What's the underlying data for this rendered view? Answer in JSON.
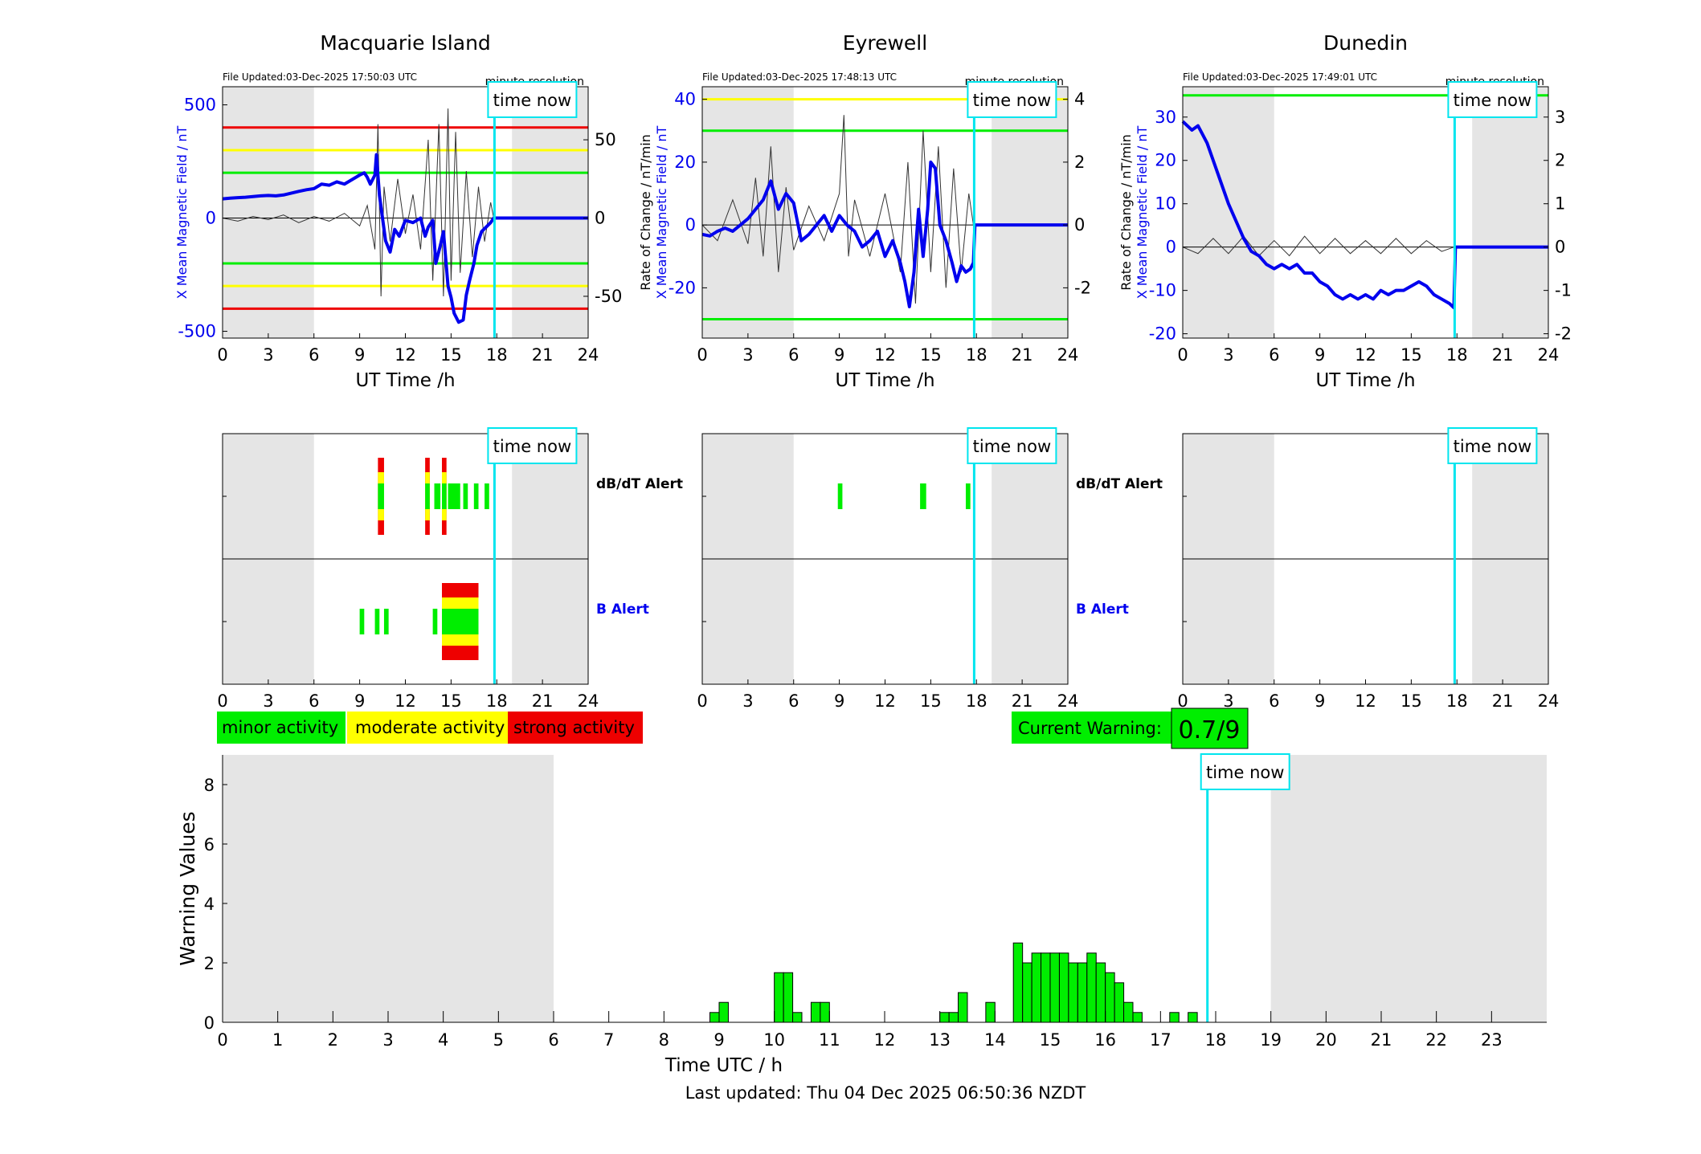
{
  "colors": {
    "blue": "#0000ee",
    "green": "#00ee00",
    "yellow": "#ffff00",
    "red": "#ee0000",
    "cyan": "#00e5ee",
    "grey_shade": "#e5e5e5",
    "trace": "#333333"
  },
  "time_now_label": "time now",
  "minute_resolution_label": "minute resolution",
  "stations": [
    {
      "name": "Macquarie Island",
      "file_updated": "File Updated:03-Dec-2025 17:50:03 UTC",
      "left_label": "X Mean Magnetic Field / nT",
      "right_label": "",
      "left_ylim": [
        -530,
        580
      ],
      "left_ticks": [
        -500,
        0,
        500
      ],
      "right_ylim": [
        -76.7,
        83.9
      ],
      "right_ticks": [
        -50,
        0,
        50
      ],
      "thresholds": [
        {
          "value": 400,
          "color": "red"
        },
        {
          "value": 300,
          "color": "yellow"
        },
        {
          "value": 200,
          "color": "green"
        },
        {
          "value": -200,
          "color": "green"
        },
        {
          "value": -300,
          "color": "yellow"
        },
        {
          "value": -400,
          "color": "red"
        }
      ],
      "mean_field": [
        [
          0,
          85
        ],
        [
          0.5,
          88
        ],
        [
          1,
          90
        ],
        [
          1.5,
          92
        ],
        [
          2,
          95
        ],
        [
          2.5,
          98
        ],
        [
          3,
          100
        ],
        [
          3.5,
          98
        ],
        [
          4,
          102
        ],
        [
          4.5,
          110
        ],
        [
          5,
          118
        ],
        [
          5.5,
          125
        ],
        [
          6,
          130
        ],
        [
          6.5,
          150
        ],
        [
          7,
          145
        ],
        [
          7.5,
          160
        ],
        [
          8,
          150
        ],
        [
          8.5,
          170
        ],
        [
          9,
          190
        ],
        [
          9.3,
          200
        ],
        [
          9.5,
          180
        ],
        [
          9.7,
          150
        ],
        [
          10,
          190
        ],
        [
          10.1,
          280
        ],
        [
          10.3,
          100
        ],
        [
          10.5,
          0
        ],
        [
          10.7,
          -100
        ],
        [
          11,
          -150
        ],
        [
          11.3,
          -50
        ],
        [
          11.6,
          -80
        ],
        [
          12,
          -10
        ],
        [
          12.5,
          -20
        ],
        [
          13,
          0
        ],
        [
          13.3,
          -80
        ],
        [
          13.5,
          -40
        ],
        [
          13.8,
          -10
        ],
        [
          14,
          -200
        ],
        [
          14.3,
          -120
        ],
        [
          14.5,
          -60
        ],
        [
          14.8,
          -300
        ],
        [
          15,
          -350
        ],
        [
          15.2,
          -420
        ],
        [
          15.5,
          -460
        ],
        [
          15.8,
          -450
        ],
        [
          16,
          -340
        ],
        [
          16.2,
          -280
        ],
        [
          16.5,
          -200
        ],
        [
          16.7,
          -120
        ],
        [
          17,
          -60
        ],
        [
          17.3,
          -40
        ],
        [
          17.6,
          -20
        ],
        [
          17.8,
          0
        ],
        [
          24,
          0
        ]
      ],
      "roc_trace": [
        [
          0,
          0
        ],
        [
          1,
          -2
        ],
        [
          2,
          1
        ],
        [
          3,
          -1
        ],
        [
          4,
          2
        ],
        [
          5,
          -3
        ],
        [
          6,
          1
        ],
        [
          7,
          -2
        ],
        [
          8,
          3
        ],
        [
          9,
          -5
        ],
        [
          9.5,
          8
        ],
        [
          10,
          -20
        ],
        [
          10.2,
          60
        ],
        [
          10.4,
          -50
        ],
        [
          10.6,
          20
        ],
        [
          11,
          -15
        ],
        [
          11.5,
          25
        ],
        [
          12,
          -10
        ],
        [
          12.5,
          15
        ],
        [
          13,
          -20
        ],
        [
          13.5,
          50
        ],
        [
          13.8,
          -40
        ],
        [
          14.2,
          60
        ],
        [
          14.5,
          -50
        ],
        [
          14.8,
          70
        ],
        [
          15,
          -40
        ],
        [
          15.3,
          55
        ],
        [
          15.6,
          -35
        ],
        [
          16,
          30
        ],
        [
          16.4,
          -25
        ],
        [
          16.8,
          20
        ],
        [
          17.2,
          -15
        ],
        [
          17.6,
          10
        ],
        [
          17.8,
          0
        ]
      ],
      "alert_db": [
        {
          "t": 10.2,
          "w": 0.4,
          "level": 3
        },
        {
          "t": 13.3,
          "w": 0.3,
          "level": 3
        },
        {
          "t": 13.9,
          "w": 0.4,
          "level": 1
        },
        {
          "t": 14.4,
          "w": 0.3,
          "level": 3
        },
        {
          "t": 14.8,
          "w": 0.8,
          "level": 1
        },
        {
          "t": 15.8,
          "w": 0.3,
          "level": 1
        },
        {
          "t": 16.5,
          "w": 0.3,
          "level": 1
        },
        {
          "t": 17.2,
          "w": 0.3,
          "level": 1
        }
      ],
      "alert_b": [
        {
          "t": 9,
          "w": 0.3,
          "level": 1
        },
        {
          "t": 10,
          "w": 0.3,
          "level": 1
        },
        {
          "t": 10.6,
          "w": 0.3,
          "level": 1
        },
        {
          "t": 13.8,
          "w": 0.3,
          "level": 1
        },
        {
          "t": 14.4,
          "w": 2.4,
          "level": 3
        }
      ]
    },
    {
      "name": "Eyrewell",
      "file_updated": "File Updated:03-Dec-2025 17:48:13 UTC",
      "left_label": "X Mean Magnetic Field / nT",
      "right_label": "Rate of Change / nT/min",
      "left_ylim": [
        -36,
        44
      ],
      "left_ticks": [
        -20,
        0,
        20,
        40
      ],
      "right_ylim": [
        -3.6,
        4.4
      ],
      "right_ticks": [
        -2,
        0,
        2,
        4
      ],
      "thresholds": [
        {
          "value": 40,
          "color": "yellow"
        },
        {
          "value": 30,
          "color": "green"
        },
        {
          "value": -30,
          "color": "green"
        }
      ],
      "mean_field": [
        [
          0,
          -3
        ],
        [
          0.5,
          -3.5
        ],
        [
          1,
          -2
        ],
        [
          1.5,
          -1
        ],
        [
          2,
          -2
        ],
        [
          2.5,
          0
        ],
        [
          3,
          2
        ],
        [
          3.5,
          5
        ],
        [
          4,
          8
        ],
        [
          4.5,
          14
        ],
        [
          5,
          5
        ],
        [
          5.5,
          10
        ],
        [
          6,
          7
        ],
        [
          6.5,
          -5
        ],
        [
          7,
          -3
        ],
        [
          7.5,
          0
        ],
        [
          8,
          3
        ],
        [
          8.5,
          -2
        ],
        [
          9,
          3
        ],
        [
          9.5,
          0
        ],
        [
          10,
          -2
        ],
        [
          10.5,
          -7
        ],
        [
          11,
          -5
        ],
        [
          11.5,
          -2
        ],
        [
          12,
          -10
        ],
        [
          12.5,
          -5
        ],
        [
          13,
          -12
        ],
        [
          13.3,
          -18
        ],
        [
          13.6,
          -26
        ],
        [
          13.9,
          -15
        ],
        [
          14.2,
          5
        ],
        [
          14.5,
          -10
        ],
        [
          14.8,
          5
        ],
        [
          15,
          20
        ],
        [
          15.3,
          18
        ],
        [
          15.6,
          0
        ],
        [
          16,
          -5
        ],
        [
          16.4,
          -12
        ],
        [
          16.7,
          -18
        ],
        [
          17,
          -13
        ],
        [
          17.3,
          -15
        ],
        [
          17.6,
          -14
        ],
        [
          17.8,
          -12
        ],
        [
          17.9,
          0
        ],
        [
          24,
          0
        ]
      ],
      "roc_trace": [
        [
          0,
          0
        ],
        [
          1,
          -0.5
        ],
        [
          2,
          0.8
        ],
        [
          3,
          -0.6
        ],
        [
          3.5,
          1.5
        ],
        [
          4,
          -1
        ],
        [
          4.5,
          2.5
        ],
        [
          5,
          -1.5
        ],
        [
          5.5,
          1.2
        ],
        [
          6,
          -0.8
        ],
        [
          7,
          0.6
        ],
        [
          8,
          -0.5
        ],
        [
          9,
          1
        ],
        [
          9.3,
          3.5
        ],
        [
          9.6,
          -1
        ],
        [
          10,
          0.8
        ],
        [
          11,
          -1
        ],
        [
          12,
          1
        ],
        [
          13,
          -1.5
        ],
        [
          13.5,
          2
        ],
        [
          14,
          -2.5
        ],
        [
          14.5,
          3
        ],
        [
          15,
          -1.5
        ],
        [
          15.5,
          2.5
        ],
        [
          16,
          -2
        ],
        [
          16.5,
          1.8
        ],
        [
          17,
          -1.5
        ],
        [
          17.5,
          1
        ],
        [
          17.8,
          0
        ]
      ],
      "alert_db": [
        {
          "t": 8.9,
          "w": 0.3,
          "level": 1
        },
        {
          "t": 14.3,
          "w": 0.4,
          "level": 1
        },
        {
          "t": 17.3,
          "w": 0.3,
          "level": 1
        }
      ],
      "alert_b": []
    },
    {
      "name": "Dunedin",
      "file_updated": "File Updated:03-Dec-2025 17:49:01 UTC",
      "left_label": "X Mean Magnetic Field / nT",
      "right_label": "Rate of Change / nT/min",
      "left_ylim": [
        -21,
        37
      ],
      "left_ticks": [
        -20,
        -10,
        0,
        10,
        20,
        30
      ],
      "right_ylim": [
        -2.1,
        3.7
      ],
      "right_ticks": [
        -2,
        -1,
        0,
        1,
        2,
        3
      ],
      "thresholds": [
        {
          "value": 35,
          "color": "green"
        }
      ],
      "mean_field": [
        [
          0,
          29
        ],
        [
          0.3,
          28
        ],
        [
          0.6,
          27
        ],
        [
          1,
          28
        ],
        [
          1.3,
          26
        ],
        [
          1.6,
          24
        ],
        [
          2,
          20
        ],
        [
          2.5,
          15
        ],
        [
          3,
          10
        ],
        [
          3.5,
          6
        ],
        [
          4,
          2
        ],
        [
          4.5,
          -1
        ],
        [
          5,
          -2
        ],
        [
          5.5,
          -4
        ],
        [
          6,
          -5
        ],
        [
          6.5,
          -4
        ],
        [
          7,
          -5
        ],
        [
          7.5,
          -4
        ],
        [
          8,
          -6
        ],
        [
          8.5,
          -6
        ],
        [
          9,
          -8
        ],
        [
          9.5,
          -9
        ],
        [
          10,
          -11
        ],
        [
          10.5,
          -12
        ],
        [
          11,
          -11
        ],
        [
          11.5,
          -12
        ],
        [
          12,
          -11
        ],
        [
          12.5,
          -12
        ],
        [
          13,
          -10
        ],
        [
          13.5,
          -11
        ],
        [
          14,
          -10
        ],
        [
          14.5,
          -10
        ],
        [
          15,
          -9
        ],
        [
          15.5,
          -8
        ],
        [
          16,
          -9
        ],
        [
          16.5,
          -11
        ],
        [
          17,
          -12
        ],
        [
          17.5,
          -13
        ],
        [
          17.8,
          -14
        ],
        [
          17.9,
          0
        ],
        [
          24,
          0
        ]
      ],
      "roc_trace": [
        [
          0,
          0
        ],
        [
          1,
          -0.15
        ],
        [
          2,
          0.2
        ],
        [
          3,
          -0.15
        ],
        [
          4,
          0.25
        ],
        [
          5,
          -0.2
        ],
        [
          6,
          0.15
        ],
        [
          7,
          -0.2
        ],
        [
          8,
          0.25
        ],
        [
          9,
          -0.15
        ],
        [
          10,
          0.2
        ],
        [
          11,
          -0.15
        ],
        [
          12,
          0.15
        ],
        [
          13,
          -0.15
        ],
        [
          14,
          0.2
        ],
        [
          15,
          -0.15
        ],
        [
          16,
          0.15
        ],
        [
          17,
          -0.1
        ],
        [
          17.8,
          0
        ]
      ],
      "alert_db": [],
      "alert_b": []
    }
  ],
  "alert_labels": {
    "db": "dB/dT Alert",
    "b": "B Alert"
  },
  "axis": {
    "ut_xlabel": "UT Time /h",
    "ut_ticks": [
      0,
      3,
      6,
      9,
      12,
      15,
      18,
      21,
      24
    ],
    "time_now_h": 17.85,
    "night_ranges": [
      [
        0,
        6
      ],
      [
        19,
        24
      ]
    ]
  },
  "legend": {
    "minor": "minor activity",
    "moderate": "moderate activity",
    "strong": "strong activity"
  },
  "current_warning": {
    "label": "Current Warning:",
    "value": "0.7/9"
  },
  "chart_data": {
    "type": "bar",
    "title": "",
    "xlabel": "Time UTC / h",
    "ylabel": "Warning Values",
    "xlim": [
      0,
      24
    ],
    "ylim": [
      0,
      9
    ],
    "x_ticks": [
      0,
      1,
      2,
      3,
      4,
      5,
      6,
      7,
      8,
      9,
      10,
      11,
      12,
      13,
      14,
      15,
      16,
      17,
      18,
      19,
      20,
      21,
      22,
      23
    ],
    "y_ticks": [
      0,
      2,
      4,
      6,
      8
    ],
    "bar_width_h": 0.1667,
    "x": [
      8.833,
      9.0,
      10.0,
      10.167,
      10.333,
      10.667,
      10.833,
      13.0,
      13.167,
      13.333,
      13.5,
      13.833,
      14.333,
      14.5,
      14.667,
      14.833,
      15.0,
      15.167,
      15.333,
      15.5,
      15.667,
      15.833,
      16.0,
      16.167,
      16.333,
      16.5,
      17.167,
      17.5
    ],
    "values": [
      0.33,
      0.67,
      1.67,
      1.67,
      0.33,
      0.67,
      0.67,
      0.33,
      0.33,
      1.0,
      0.0,
      0.67,
      2.67,
      2.0,
      2.33,
      2.33,
      2.33,
      2.33,
      2.0,
      2.0,
      2.33,
      2.0,
      1.67,
      1.33,
      0.67,
      0.33,
      0.33,
      0.33
    ],
    "night_ranges": [
      [
        0,
        6
      ],
      [
        19,
        24
      ]
    ],
    "time_now_h": 17.85
  },
  "footer": {
    "last_updated": "Last updated: Thu 04 Dec 2025 06:50:36 NZDT"
  }
}
